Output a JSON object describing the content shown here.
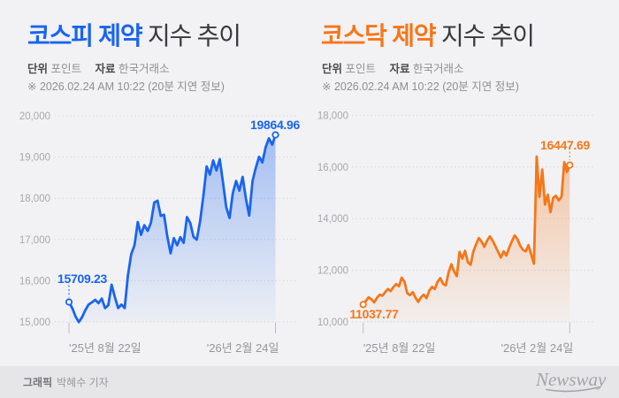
{
  "colors": {
    "page_bg": "#f2f2f4",
    "footer_bg": "#e6e6e8",
    "kospi_accent": "#1a64f0",
    "kosdaq_accent": "#f6761a",
    "title_text": "#3a3a3e",
    "meta_text": "#8f8f93",
    "grid_line": "#d6d6da"
  },
  "chart_data": [
    {
      "type": "area",
      "title_accent": "코스피 제약",
      "title_rest": "지수 추이",
      "unit_label": "단위",
      "unit_value": "포인트",
      "source_label": "자료",
      "source_value": "한국거래소",
      "notice": "※ 2026.02.24 AM 10:22 (20분 지연 정보)",
      "color": "#1a64f0",
      "start_label": "15709.23",
      "end_label": "19864.96",
      "start_value": 15709.23,
      "end_value": 19864.96,
      "ylim": [
        15000,
        20000
      ],
      "grid": "dotted-horizontal",
      "legend": "none",
      "y_ticks": [
        "20,000",
        "19,000",
        "18,000",
        "17,000",
        "16,000",
        "15,000"
      ],
      "y_tick_values": [
        20000,
        19000,
        18000,
        17000,
        16000,
        15000
      ],
      "x_ticks": [
        "'25년 8월 22일",
        "'26년 2월 24일"
      ],
      "values": [
        15709.23,
        15560,
        15350,
        15210,
        15330,
        15510,
        15645,
        15700,
        15765,
        15680,
        15795,
        15560,
        15630,
        16140,
        15830,
        15560,
        15645,
        15560,
        16380,
        16900,
        17120,
        17700,
        17380,
        17620,
        17480,
        17680,
        18180,
        18230,
        17850,
        17880,
        17340,
        16920,
        17300,
        17120,
        17320,
        17180,
        17820,
        17680,
        17330,
        17260,
        17720,
        18350,
        19080,
        18880,
        19230,
        18980,
        19260,
        18680,
        18060,
        17800,
        18420,
        18720,
        18480,
        18820,
        18280,
        17860,
        18720,
        19050,
        19320,
        19180,
        19560,
        19780,
        19620,
        19864.96
      ]
    },
    {
      "type": "area",
      "title_accent": "코스닥 제약",
      "title_rest": "지수 추이",
      "unit_label": "단위",
      "unit_value": "포인트",
      "source_label": "자료",
      "source_value": "한국거래소",
      "notice": "※ 2026.02.24 AM 10:22 (20분 지연 정보)",
      "color": "#f6761a",
      "start_label": "11037.77",
      "end_label": "16447.69",
      "start_value": 11037.77,
      "end_value": 16447.69,
      "ylim": [
        10000,
        18000
      ],
      "grid": "dotted-horizontal",
      "legend": "none",
      "y_ticks": [
        "18,000",
        "16,000",
        "14,000",
        "12,000",
        "10,000"
      ],
      "y_tick_values": [
        18000,
        16000,
        14000,
        12000,
        10000
      ],
      "x_ticks": [
        "'25년 8월 22일",
        "'26년 2월 24일"
      ],
      "values": [
        11037.77,
        11180,
        11320,
        11240,
        11120,
        11300,
        11420,
        11380,
        11520,
        11640,
        11560,
        11720,
        11830,
        11750,
        12080,
        11920,
        11480,
        11400,
        11520,
        11300,
        11140,
        11320,
        11420,
        11280,
        11580,
        11720,
        11640,
        11920,
        12060,
        11840,
        11780,
        12280,
        12600,
        12320,
        12140,
        13080,
        12820,
        13120,
        12680,
        12580,
        13100,
        13380,
        13620,
        13480,
        13280,
        13520,
        13680,
        13520,
        13300,
        13080,
        12860,
        13100,
        12940,
        13240,
        13500,
        13720,
        13580,
        13320,
        13160,
        13100,
        13340,
        12980,
        12620,
        16780,
        15220,
        16280,
        14920,
        15300,
        14620,
        15180,
        15260,
        15080,
        15220,
        16560,
        16180,
        16447.69
      ]
    }
  ],
  "footer": {
    "credit_label": "그래픽",
    "credit_value": "박혜수 기자",
    "logo_text": "Newsway"
  }
}
